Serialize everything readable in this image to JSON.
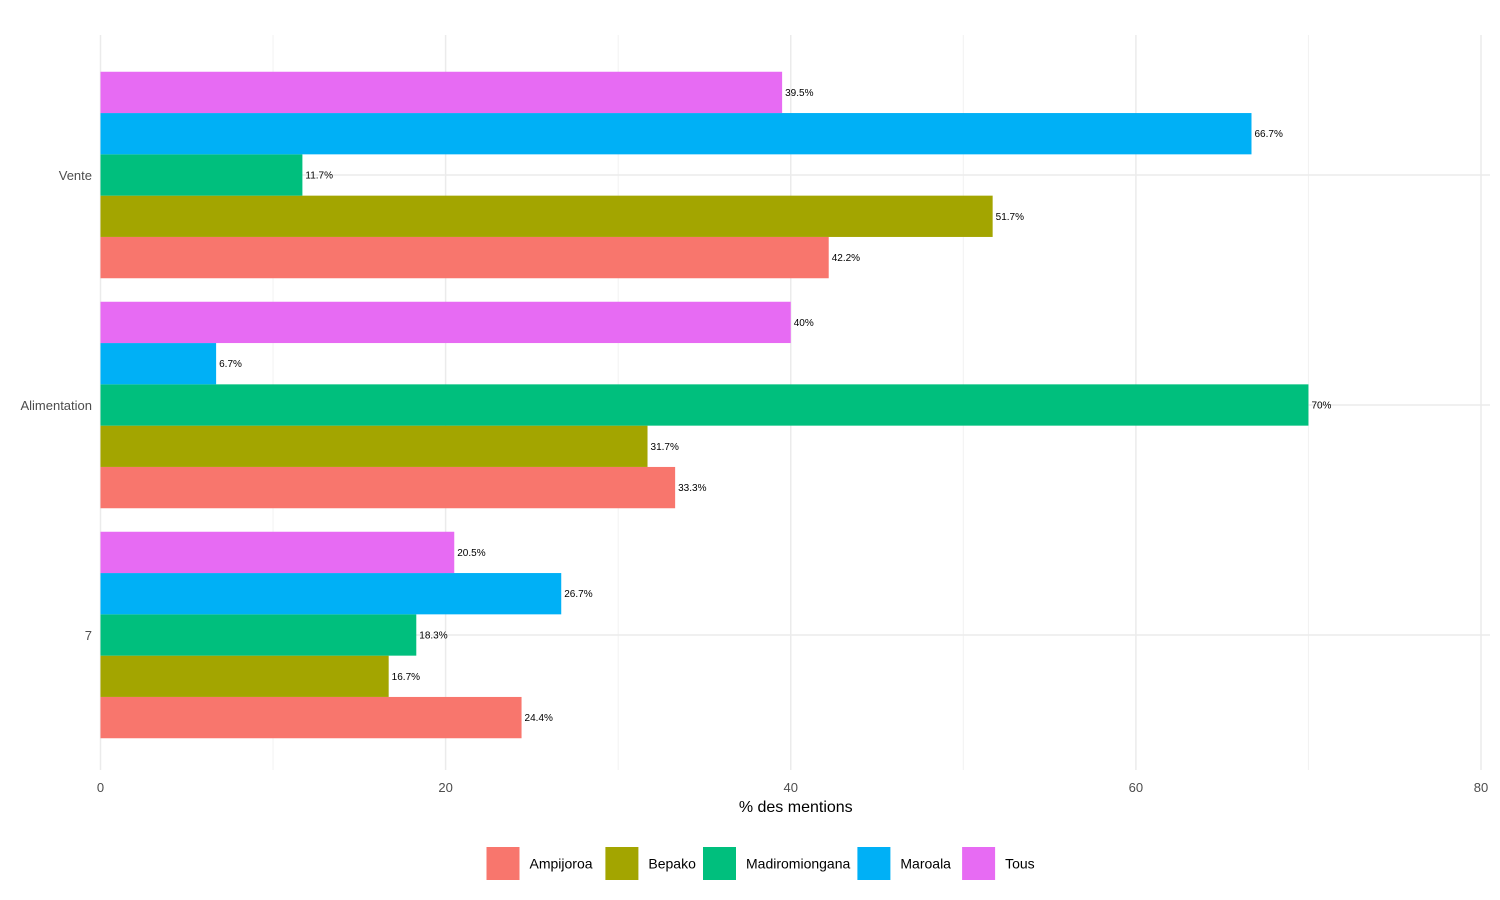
{
  "chart_data": {
    "type": "bar",
    "orientation": "horizontal",
    "title": "",
    "xlabel": "% des mentions",
    "ylabel": "",
    "xlim": [
      0,
      80
    ],
    "x_ticks": [
      0,
      20,
      40,
      60,
      80
    ],
    "grid": true,
    "legend_position": "bottom",
    "categories": [
      "Vente",
      "Alimentation",
      "7"
    ],
    "series": [
      {
        "name": "Ampijoroa",
        "color": "#F8766D",
        "values": [
          42.2,
          33.3,
          24.4
        ],
        "labels": [
          "42.2%",
          "33.3%",
          "24.4%"
        ]
      },
      {
        "name": "Bepako",
        "color": "#A3A500",
        "values": [
          51.7,
          31.7,
          16.7
        ],
        "labels": [
          "51.7%",
          "31.7%",
          "16.7%"
        ]
      },
      {
        "name": "Madiromiongana",
        "color": "#00BF7D",
        "values": [
          11.7,
          70,
          18.3
        ],
        "labels": [
          "11.7%",
          "70%",
          "18.3%"
        ]
      },
      {
        "name": "Maroala",
        "color": "#00B0F6",
        "values": [
          66.7,
          6.7,
          26.7
        ],
        "labels": [
          "66.7%",
          "6.7%",
          "26.7%"
        ]
      },
      {
        "name": "Tous",
        "color": "#E76BF3",
        "values": [
          39.5,
          40,
          20.5
        ],
        "labels": [
          "39.5%",
          "40%",
          "20.5%"
        ]
      }
    ]
  }
}
